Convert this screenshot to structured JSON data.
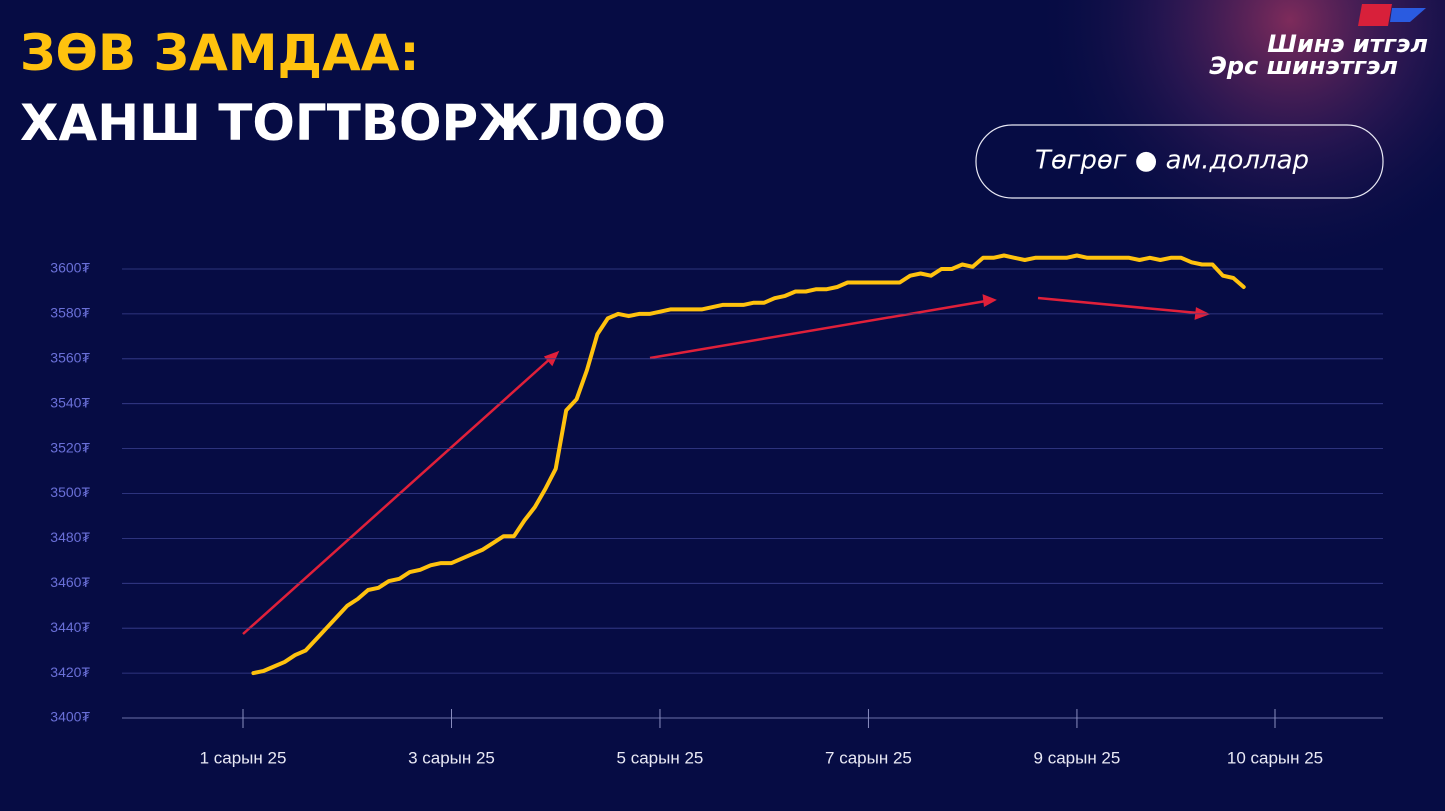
{
  "title": [
    "ЗӨВ ЗАМДАА:",
    "ХАНШ ТОГТВОРЖЛОО"
  ],
  "logo": [
    "Шинэ итгэл",
    "Эрс шинэтгэл"
  ],
  "chart_data": {
    "type": "line",
    "subtitle": "Төгрөг ● ам.доллар",
    "categories": [
      "1 сарын 25",
      null,
      null,
      null,
      null,
      null,
      null,
      null,
      null,
      null,
      null,
      null,
      null,
      null,
      null,
      null,
      null,
      null,
      null,
      null,
      "3 сарын 25",
      null,
      null,
      null,
      null,
      null,
      null,
      null,
      null,
      null,
      null,
      null,
      null,
      null,
      null,
      null,
      null,
      null,
      null,
      null,
      "5 сарын 25",
      null,
      null,
      null,
      null,
      null,
      null,
      null,
      null,
      null,
      null,
      null,
      null,
      null,
      null,
      null,
      null,
      null,
      null,
      null,
      "7 сарын 25",
      null,
      null,
      null,
      null,
      null,
      null,
      null,
      null,
      null,
      null,
      null,
      null,
      null,
      null,
      null,
      null,
      null,
      null,
      null,
      "9 сарын 25",
      null,
      null,
      null,
      null,
      null,
      null,
      null,
      null,
      null,
      null,
      null,
      null,
      null,
      null,
      null,
      null,
      null,
      null,
      "10 сарын 25"
    ],
    "series": [
      {
        "color": "#ffc20e",
        "values": [
          null,
          3420,
          3421,
          3423,
          3425,
          3428,
          3430,
          3435,
          3440,
          3445,
          3450,
          3453,
          3457,
          3458,
          3461,
          3462,
          3465,
          3466,
          3468,
          3469,
          3469,
          3471,
          3473,
          3475,
          3478,
          3481,
          3481,
          3488,
          3494,
          3502,
          3511,
          3537,
          3542,
          3555,
          3571,
          3578,
          3580,
          3579,
          3580,
          3580,
          3581,
          3582,
          3582,
          3582,
          3582,
          3583,
          3584,
          3584,
          3584,
          3585,
          3585,
          3587,
          3588,
          3590,
          3590,
          3591,
          3591,
          3592,
          3594,
          3594,
          3594,
          3594,
          3594,
          3594,
          3597,
          3598,
          3597,
          3600,
          3600,
          3602,
          3601,
          3605,
          3605,
          3606,
          3605,
          3604,
          3605,
          3605,
          3605,
          3605,
          3606,
          3605,
          3605,
          3605,
          3605,
          3605,
          3604,
          3605,
          3604,
          3605,
          3605,
          3603,
          3602,
          3602,
          3597,
          3596,
          3592,
          null,
          null,
          null
        ]
      }
    ],
    "ylim": [
      3400,
      3600
    ],
    "yticks": [
      {
        "value": 3400,
        "label": "3400₮"
      },
      {
        "value": 3420,
        "label": "3420₮"
      },
      {
        "value": 3440,
        "label": "3440₮"
      },
      {
        "value": 3460,
        "label": "3460₮"
      },
      {
        "value": 3480,
        "label": "3480₮"
      },
      {
        "value": 3500,
        "label": "3500₮"
      },
      {
        "value": 3520,
        "label": "3520₮"
      },
      {
        "value": 3540,
        "label": "3540₮"
      },
      {
        "value": 3560,
        "label": "3560₮"
      },
      {
        "value": 3580,
        "label": "3580₮"
      },
      {
        "value": 3600,
        "label": "3600₮"
      }
    ],
    "grid": true
  }
}
